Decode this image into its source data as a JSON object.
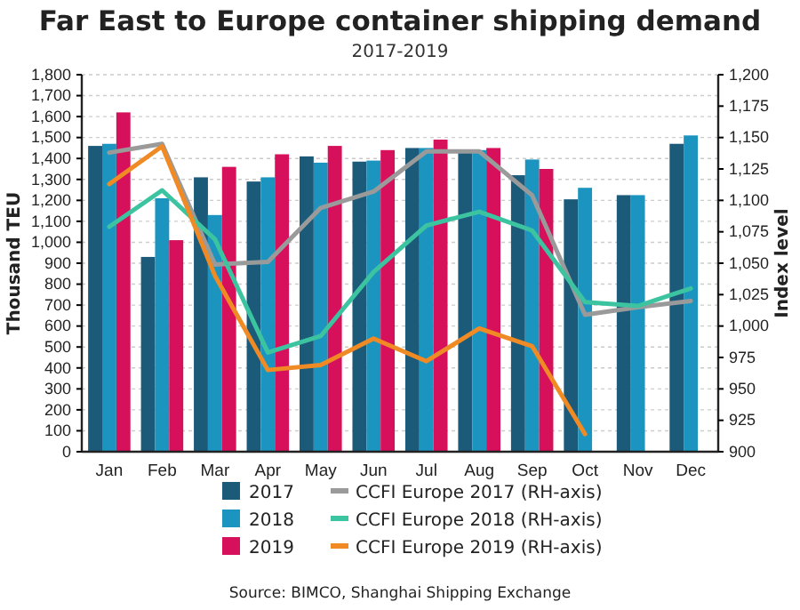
{
  "chart_data": {
    "type": "bar",
    "title": "Far East to Europe container shipping demand",
    "subtitle": "2017-2019",
    "ylabel": "Thousand TEU",
    "y2label": "Index level",
    "categories": [
      "Jan",
      "Feb",
      "Mar",
      "Apr",
      "May",
      "Jun",
      "Jul",
      "Aug",
      "Sep",
      "Oct",
      "Nov",
      "Dec"
    ],
    "series": [
      {
        "name": "2017",
        "color": "#1c5a7a",
        "values": [
          1460,
          930,
          1310,
          1290,
          1410,
          1385,
          1450,
          1440,
          1320,
          1205,
          1225,
          1470
        ]
      },
      {
        "name": "2018",
        "color": "#1b95c0",
        "values": [
          1470,
          1210,
          1130,
          1310,
          1380,
          1390,
          1450,
          1440,
          1395,
          1260,
          1225,
          1510
        ]
      },
      {
        "name": "2019",
        "color": "#d6105b",
        "values": [
          1620,
          1010,
          1360,
          1420,
          1460,
          1440,
          1490,
          1450,
          1350,
          null,
          null,
          null
        ]
      },
      {
        "name": "CCFI Europe 2017 (RH-axis)",
        "type": "line",
        "axis": "y2",
        "color": "#9a9a9a",
        "values": [
          1138,
          1145,
          1049,
          1051,
          1094,
          1107,
          1139,
          1139,
          1104,
          1009,
          1015,
          1020
        ]
      },
      {
        "name": "CCFI Europe 2018 (RH-axis)",
        "type": "line",
        "axis": "y2",
        "color": "#3cc4a0",
        "values": [
          1079,
          1108,
          1069,
          979,
          992,
          1043,
          1080,
          1091,
          1076,
          1019,
          1016,
          1030
        ]
      },
      {
        "name": "CCFI Europe 2019 (RH-axis)",
        "type": "line",
        "axis": "y2",
        "color": "#f08a24",
        "values": [
          1113,
          1143,
          1040,
          965,
          969,
          990,
          972,
          998,
          984,
          914,
          null,
          null
        ]
      }
    ],
    "ylim": [
      0,
      1800
    ],
    "yticks": [
      0,
      100,
      200,
      300,
      400,
      500,
      600,
      700,
      800,
      900,
      {
        "value": 1000,
        "label": "1,000"
      },
      {
        "value": 1100,
        "label": "1,100"
      },
      {
        "value": 1200,
        "label": "1,200"
      },
      {
        "value": 1300,
        "label": "1,300"
      },
      {
        "value": 1400,
        "label": "1,400"
      },
      {
        "value": 1500,
        "label": "1,500"
      },
      {
        "value": 1600,
        "label": "1,600"
      },
      {
        "value": 1700,
        "label": "1,700"
      },
      {
        "value": 1800,
        "label": "1,800"
      }
    ],
    "y2lim": [
      900,
      1200
    ],
    "y2ticks": [
      900,
      925,
      950,
      975,
      {
        "value": 1000,
        "label": "1,000"
      },
      {
        "value": 1025,
        "label": "1,025"
      },
      {
        "value": 1050,
        "label": "1,050"
      },
      {
        "value": 1075,
        "label": "1,075"
      },
      {
        "value": 1100,
        "label": "1,100"
      },
      {
        "value": 1125,
        "label": "1,125"
      },
      {
        "value": 1150,
        "label": "1,150"
      },
      {
        "value": 1175,
        "label": "1,175"
      },
      {
        "value": 1200,
        "label": "1,200"
      }
    ],
    "grid": "y",
    "legend": "bottom",
    "line_style": "solid",
    "marker": "none",
    "annotations": [
      "Source: BIMCO, Shanghai Shipping Exchange"
    ]
  }
}
